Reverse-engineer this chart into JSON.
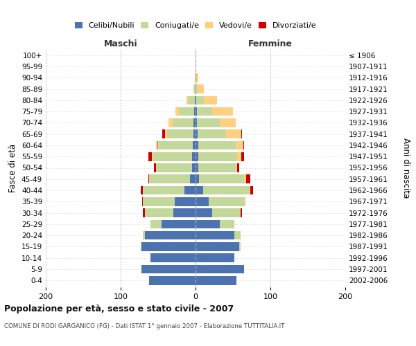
{
  "age_groups": [
    "0-4",
    "5-9",
    "10-14",
    "15-19",
    "20-24",
    "25-29",
    "30-34",
    "35-39",
    "40-44",
    "45-49",
    "50-54",
    "55-59",
    "60-64",
    "65-69",
    "70-74",
    "75-79",
    "80-84",
    "85-89",
    "90-94",
    "95-99",
    "100+"
  ],
  "birth_years": [
    "2002-2006",
    "1997-2001",
    "1992-1996",
    "1987-1991",
    "1982-1986",
    "1977-1981",
    "1972-1976",
    "1967-1971",
    "1962-1966",
    "1957-1961",
    "1952-1956",
    "1947-1951",
    "1942-1946",
    "1937-1941",
    "1932-1936",
    "1927-1931",
    "1922-1926",
    "1917-1921",
    "1912-1916",
    "1907-1911",
    "≤ 1906"
  ],
  "maschi": {
    "celibi": [
      62,
      72,
      60,
      72,
      68,
      45,
      30,
      28,
      15,
      7,
      5,
      5,
      4,
      3,
      3,
      2,
      1,
      0,
      0,
      0,
      0
    ],
    "coniugati": [
      0,
      0,
      0,
      1,
      2,
      15,
      38,
      42,
      55,
      55,
      48,
      52,
      45,
      35,
      28,
      20,
      9,
      2,
      1,
      0,
      0
    ],
    "vedovi": [
      0,
      0,
      0,
      0,
      0,
      0,
      0,
      0,
      0,
      0,
      0,
      1,
      2,
      3,
      5,
      5,
      2,
      1,
      0,
      0,
      0
    ],
    "divorziati": [
      0,
      0,
      0,
      0,
      0,
      0,
      2,
      1,
      3,
      1,
      3,
      5,
      1,
      3,
      0,
      0,
      0,
      0,
      0,
      0,
      0
    ]
  },
  "femmine": {
    "nubili": [
      55,
      65,
      52,
      58,
      52,
      32,
      22,
      18,
      10,
      5,
      4,
      4,
      4,
      3,
      2,
      2,
      1,
      0,
      0,
      0,
      0
    ],
    "coniugate": [
      0,
      0,
      0,
      2,
      8,
      20,
      38,
      48,
      62,
      60,
      50,
      52,
      50,
      38,
      30,
      20,
      10,
      3,
      1,
      0,
      0
    ],
    "vedove": [
      0,
      0,
      0,
      0,
      0,
      0,
      0,
      1,
      1,
      3,
      2,
      5,
      10,
      20,
      22,
      28,
      18,
      8,
      3,
      1,
      0
    ],
    "divorziate": [
      0,
      0,
      0,
      0,
      0,
      0,
      2,
      0,
      4,
      5,
      2,
      4,
      1,
      1,
      0,
      0,
      0,
      0,
      0,
      0,
      0
    ]
  },
  "colors": {
    "celibi": "#4C72B0",
    "coniugati": "#C5D89B",
    "vedovi": "#FFD080",
    "divorziati": "#CC0000"
  },
  "title": "Popolazione per età, sesso e stato civile - 2007",
  "subtitle": "COMUNE DI RODI GARGANICO (FG) - Dati ISTAT 1° gennaio 2007 - Elaborazione TUTTITALIA.IT",
  "ylabel_left": "Fasce di età",
  "ylabel_right": "Anni di nascita",
  "xlim": 200,
  "xlabel_maschi": "Maschi",
  "xlabel_femmine": "Femmine",
  "bg_color": "#ffffff",
  "grid_color": "#bbbbbb"
}
